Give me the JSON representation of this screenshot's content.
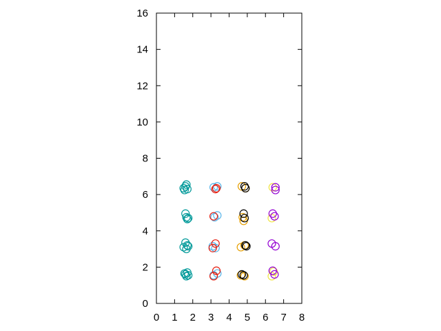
{
  "chart_data": {
    "type": "scatter",
    "title": "",
    "xlabel": "",
    "ylabel": "",
    "xlim": [
      0,
      8
    ],
    "ylim": [
      0,
      16
    ],
    "x_ticks": [
      "0",
      "1",
      "2",
      "3",
      "4",
      "5",
      "6",
      "7",
      "8"
    ],
    "y_ticks": [
      "0",
      "2",
      "4",
      "6",
      "8",
      "10",
      "12",
      "14",
      "16"
    ],
    "grid": false,
    "legend": "none",
    "marker": "open-circle",
    "series": [
      {
        "color": "#009999",
        "points": [
          [
            1.5,
            6.35
          ],
          [
            1.6,
            6.45
          ],
          [
            1.7,
            6.3
          ],
          [
            1.65,
            6.55
          ],
          [
            1.55,
            6.25
          ],
          [
            1.6,
            4.95
          ],
          [
            1.65,
            4.75
          ],
          [
            1.7,
            4.65
          ],
          [
            1.75,
            4.7
          ],
          [
            1.6,
            3.35
          ],
          [
            1.5,
            3.1
          ],
          [
            1.7,
            3.2
          ],
          [
            1.65,
            3.0
          ],
          [
            1.75,
            3.15
          ],
          [
            1.6,
            1.6
          ],
          [
            1.7,
            1.7
          ],
          [
            1.55,
            1.65
          ],
          [
            1.75,
            1.55
          ],
          [
            1.65,
            1.5
          ]
        ]
      },
      {
        "color": "#56b4e9",
        "points": [
          [
            3.15,
            6.4
          ],
          [
            3.35,
            6.45
          ],
          [
            3.2,
            4.75
          ],
          [
            3.35,
            4.85
          ],
          [
            3.1,
            3.15
          ],
          [
            3.25,
            3.05
          ],
          [
            3.35,
            1.65
          ],
          [
            3.15,
            1.55
          ]
        ]
      },
      {
        "color": "#e51e10",
        "points": [
          [
            3.25,
            6.3
          ],
          [
            3.3,
            6.35
          ],
          [
            3.15,
            4.8
          ],
          [
            3.1,
            3.05
          ],
          [
            3.25,
            3.3
          ],
          [
            3.15,
            1.5
          ],
          [
            3.3,
            1.8
          ]
        ]
      },
      {
        "color": "#e69f00",
        "points": [
          [
            4.7,
            6.45
          ],
          [
            4.9,
            6.35
          ],
          [
            4.75,
            4.75
          ],
          [
            4.8,
            4.55
          ],
          [
            4.65,
            3.1
          ],
          [
            4.85,
            3.2
          ],
          [
            4.65,
            1.55
          ],
          [
            4.85,
            1.5
          ]
        ]
      },
      {
        "color": "#000000",
        "points": [
          [
            4.85,
            6.45
          ],
          [
            4.9,
            6.35
          ],
          [
            4.8,
            4.95
          ],
          [
            4.85,
            4.7
          ],
          [
            4.9,
            3.2
          ],
          [
            4.95,
            3.15
          ],
          [
            4.7,
            1.6
          ],
          [
            4.8,
            1.55
          ]
        ]
      },
      {
        "color": "#f0e442",
        "points": [
          [
            6.4,
            6.4
          ],
          [
            6.35,
            4.7
          ],
          [
            6.35,
            1.5
          ],
          [
            6.45,
            1.75
          ]
        ]
      },
      {
        "color": "#9400d3",
        "points": [
          [
            6.55,
            6.4
          ],
          [
            6.55,
            6.25
          ],
          [
            6.4,
            4.95
          ],
          [
            6.5,
            4.8
          ],
          [
            6.35,
            3.3
          ],
          [
            6.55,
            3.15
          ],
          [
            6.4,
            1.8
          ],
          [
            6.5,
            1.6
          ]
        ]
      }
    ]
  }
}
